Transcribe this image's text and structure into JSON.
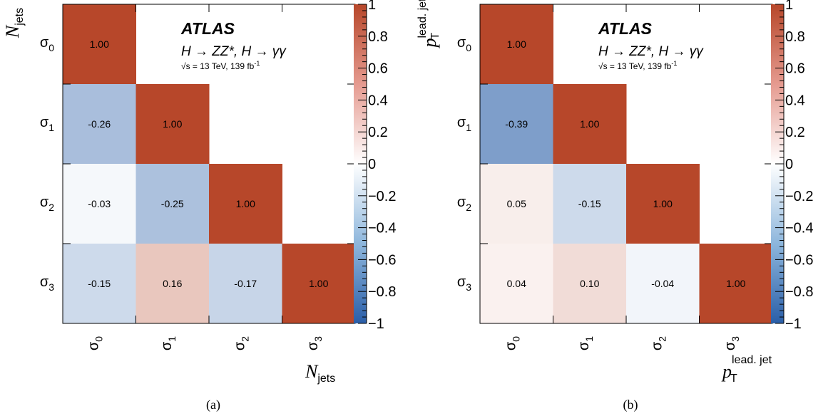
{
  "figure": {
    "panels": [
      {
        "caption": "(a)",
        "atlas_label": "ATLAS",
        "process_label": "H → ZZ*, H → γγ",
        "lumi_label": "√s = 13 TeV, 139 fb",
        "lumi_sup": "-1",
        "y_axis": {
          "main": "N",
          "sub": "jets",
          "sup": ""
        },
        "x_axis": {
          "main": "N",
          "sub": "jets",
          "sup": ""
        }
      },
      {
        "caption": "(b)",
        "atlas_label": "ATLAS",
        "process_label": "H → ZZ*, H → γγ",
        "lumi_label": "√s = 13 TeV, 139 fb",
        "lumi_sup": "-1",
        "y_axis": {
          "main": "p",
          "sub": "T",
          "sup": "lead. jet"
        },
        "x_axis": {
          "main": "p",
          "sub": "T",
          "sup": "lead. jet"
        }
      }
    ],
    "colorbar_ticks": [
      "1",
      "0.8",
      "0.6",
      "0.4",
      "0.2",
      "0",
      "−0.2",
      "−0.4",
      "−0.6",
      "−0.8",
      "−1"
    ],
    "colors": {
      "max": "#b7472a",
      "mid": "#ffffff",
      "min": "#2a5ea8"
    }
  },
  "chart_data": [
    {
      "type": "heatmap",
      "categories": [
        "σ0",
        "σ1",
        "σ2",
        "σ3"
      ],
      "cell_labels": [
        [
          "1.00",
          "",
          "",
          ""
        ],
        [
          "-0.26",
          "1.00",
          "",
          ""
        ],
        [
          "-0.03",
          "-0.25",
          "1.00",
          ""
        ],
        [
          "-0.15",
          "0.16",
          "-0.17",
          "1.00"
        ]
      ],
      "values": [
        [
          1.0,
          null,
          null,
          null
        ],
        [
          -0.26,
          1.0,
          null,
          null
        ],
        [
          -0.03,
          -0.25,
          1.0,
          null
        ],
        [
          -0.15,
          0.16,
          -0.17,
          1.0
        ]
      ],
      "zlim": [
        -1,
        1
      ]
    },
    {
      "type": "heatmap",
      "categories": [
        "σ0",
        "σ1",
        "σ2",
        "σ3"
      ],
      "cell_labels": [
        [
          "1.00",
          "",
          "",
          ""
        ],
        [
          "-0.39",
          "1.00",
          "",
          ""
        ],
        [
          "0.05",
          "-0.15",
          "1.00",
          ""
        ],
        [
          "0.04",
          "0.10",
          "-0.04",
          "1.00"
        ]
      ],
      "values": [
        [
          1.0,
          null,
          null,
          null
        ],
        [
          -0.39,
          1.0,
          null,
          null
        ],
        [
          0.05,
          -0.15,
          1.0,
          null
        ],
        [
          0.04,
          0.1,
          -0.04,
          1.0
        ]
      ],
      "zlim": [
        -1,
        1
      ]
    }
  ]
}
